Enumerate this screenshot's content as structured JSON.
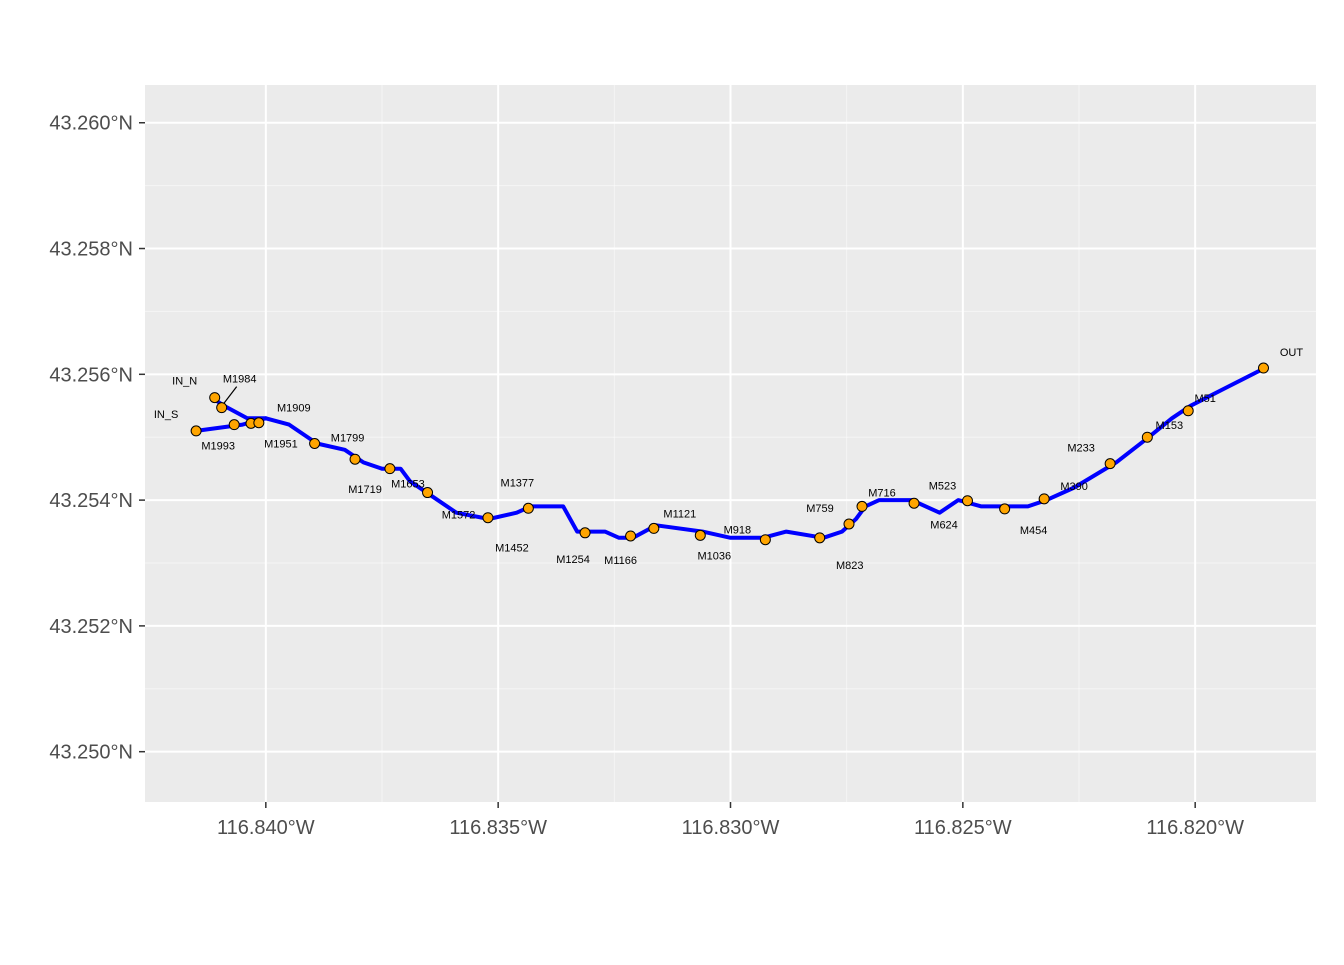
{
  "chart_data": {
    "type": "scatter",
    "title": "",
    "xlabel": "",
    "ylabel": "",
    "xlim": [
      -116.8426,
      -116.8174
    ],
    "ylim": [
      43.2492,
      43.2606
    ],
    "grid": true,
    "x_ticks": [
      {
        "value": -116.84,
        "label": "116.840°W"
      },
      {
        "value": -116.835,
        "label": "116.835°W"
      },
      {
        "value": -116.83,
        "label": "116.830°W"
      },
      {
        "value": -116.825,
        "label": "116.825°W"
      },
      {
        "value": -116.82,
        "label": "116.820°W"
      }
    ],
    "y_ticks": [
      {
        "value": 43.25,
        "label": "43.250°N"
      },
      {
        "value": 43.252,
        "label": "43.252°N"
      },
      {
        "value": 43.254,
        "label": "43.254°N"
      },
      {
        "value": 43.256,
        "label": "43.256°N"
      },
      {
        "value": 43.258,
        "label": "43.258°N"
      },
      {
        "value": 43.26,
        "label": "43.260°N"
      }
    ],
    "colors": {
      "river": "#0000ff",
      "point_fill": "#ffa500",
      "point_stroke": "#000000",
      "panel": "#ebebeb",
      "grid": "#ffffff"
    },
    "river_line": [
      [
        -116.8415,
        43.2551
      ],
      [
        -116.8405,
        43.2552
      ],
      [
        -116.84,
        43.2553
      ],
      [
        -116.8395,
        43.2552
      ],
      [
        -116.8389,
        43.2549
      ],
      [
        -116.8383,
        43.2548
      ],
      [
        -116.8379,
        43.2546
      ],
      [
        -116.8375,
        43.2545
      ],
      [
        -116.8371,
        43.2545
      ],
      [
        -116.8369,
        43.2543
      ],
      [
        -116.8365,
        43.2541
      ],
      [
        -116.8359,
        43.2538
      ],
      [
        -116.8352,
        43.2537
      ],
      [
        -116.8346,
        43.2538
      ],
      [
        -116.8343,
        43.2539
      ],
      [
        -116.8336,
        43.2539
      ],
      [
        -116.8333,
        43.2535
      ],
      [
        -116.8327,
        43.2535
      ],
      [
        -116.8324,
        43.2534
      ],
      [
        -116.8321,
        43.2534
      ],
      [
        -116.8316,
        43.2536
      ],
      [
        -116.8306,
        43.2535
      ],
      [
        -116.83,
        43.2534
      ],
      [
        -116.8293,
        43.2534
      ],
      [
        -116.8288,
        43.2535
      ],
      [
        -116.828,
        43.2534
      ],
      [
        -116.8276,
        43.2535
      ],
      [
        -116.8273,
        43.2537
      ],
      [
        -116.8271,
        43.2539
      ],
      [
        -116.8268,
        43.254
      ],
      [
        -116.8261,
        43.254
      ],
      [
        -116.8255,
        43.2538
      ],
      [
        -116.8251,
        43.254
      ],
      [
        -116.8246,
        43.2539
      ],
      [
        -116.8241,
        43.2539
      ],
      [
        -116.8236,
        43.2539
      ],
      [
        -116.8232,
        43.254
      ],
      [
        -116.8226,
        43.2542
      ],
      [
        -116.8217,
        43.2546
      ],
      [
        -116.821,
        43.255
      ],
      [
        -116.8205,
        43.2553
      ],
      [
        -116.8201,
        43.2555
      ],
      [
        -116.8193,
        43.2558
      ],
      [
        -116.8185,
        43.2561
      ]
    ],
    "north_branch": [
      [
        -116.8411,
        43.2556
      ],
      [
        -116.8409,
        43.2555
      ],
      [
        -116.8404,
        43.2553
      ],
      [
        -116.84,
        43.2553
      ]
    ],
    "points": [
      {
        "name": "IN_N",
        "x": -116.8411,
        "y": 43.25563
      },
      {
        "name": "IN_S",
        "x": -116.8415,
        "y": 43.2551
      },
      {
        "name": "M1984",
        "x": -116.84095,
        "y": 43.25547
      },
      {
        "name": "M1993",
        "x": -116.84068,
        "y": 43.2552
      },
      {
        "name": "M1951",
        "x": -116.84032,
        "y": 43.25522
      },
      {
        "name": "M1909",
        "x": -116.84015,
        "y": 43.25523
      },
      {
        "name": "M1799",
        "x": -116.83895,
        "y": 43.2549
      },
      {
        "name": "M1719",
        "x": -116.83808,
        "y": 43.25465
      },
      {
        "name": "M1653",
        "x": -116.83733,
        "y": 43.2545
      },
      {
        "name": "M1572",
        "x": -116.83652,
        "y": 43.25412
      },
      {
        "name": "M1452",
        "x": -116.83522,
        "y": 43.25372
      },
      {
        "name": "M1377",
        "x": -116.83435,
        "y": 43.25387
      },
      {
        "name": "M1254",
        "x": -116.83313,
        "y": 43.25348
      },
      {
        "name": "M1166",
        "x": -116.83215,
        "y": 43.25343
      },
      {
        "name": "M1121",
        "x": -116.83165,
        "y": 43.25355
      },
      {
        "name": "M1036",
        "x": -116.83065,
        "y": 43.25344
      },
      {
        "name": "M918",
        "x": -116.82925,
        "y": 43.25337
      },
      {
        "name": "M823",
        "x": -116.82808,
        "y": 43.2534
      },
      {
        "name": "M759",
        "x": -116.82745,
        "y": 43.25362
      },
      {
        "name": "M716",
        "x": -116.82717,
        "y": 43.2539
      },
      {
        "name": "M624",
        "x": -116.82605,
        "y": 43.25395
      },
      {
        "name": "M523",
        "x": -116.8249,
        "y": 43.25399
      },
      {
        "name": "M454",
        "x": -116.8241,
        "y": 43.25386
      },
      {
        "name": "M390",
        "x": -116.82325,
        "y": 43.25402
      },
      {
        "name": "M233",
        "x": -116.82183,
        "y": 43.25458
      },
      {
        "name": "M153",
        "x": -116.82103,
        "y": 43.255
      },
      {
        "name": "M51",
        "x": -116.82015,
        "y": 43.25542
      },
      {
        "name": "OUT",
        "x": -116.81853,
        "y": 43.2561
      }
    ]
  }
}
